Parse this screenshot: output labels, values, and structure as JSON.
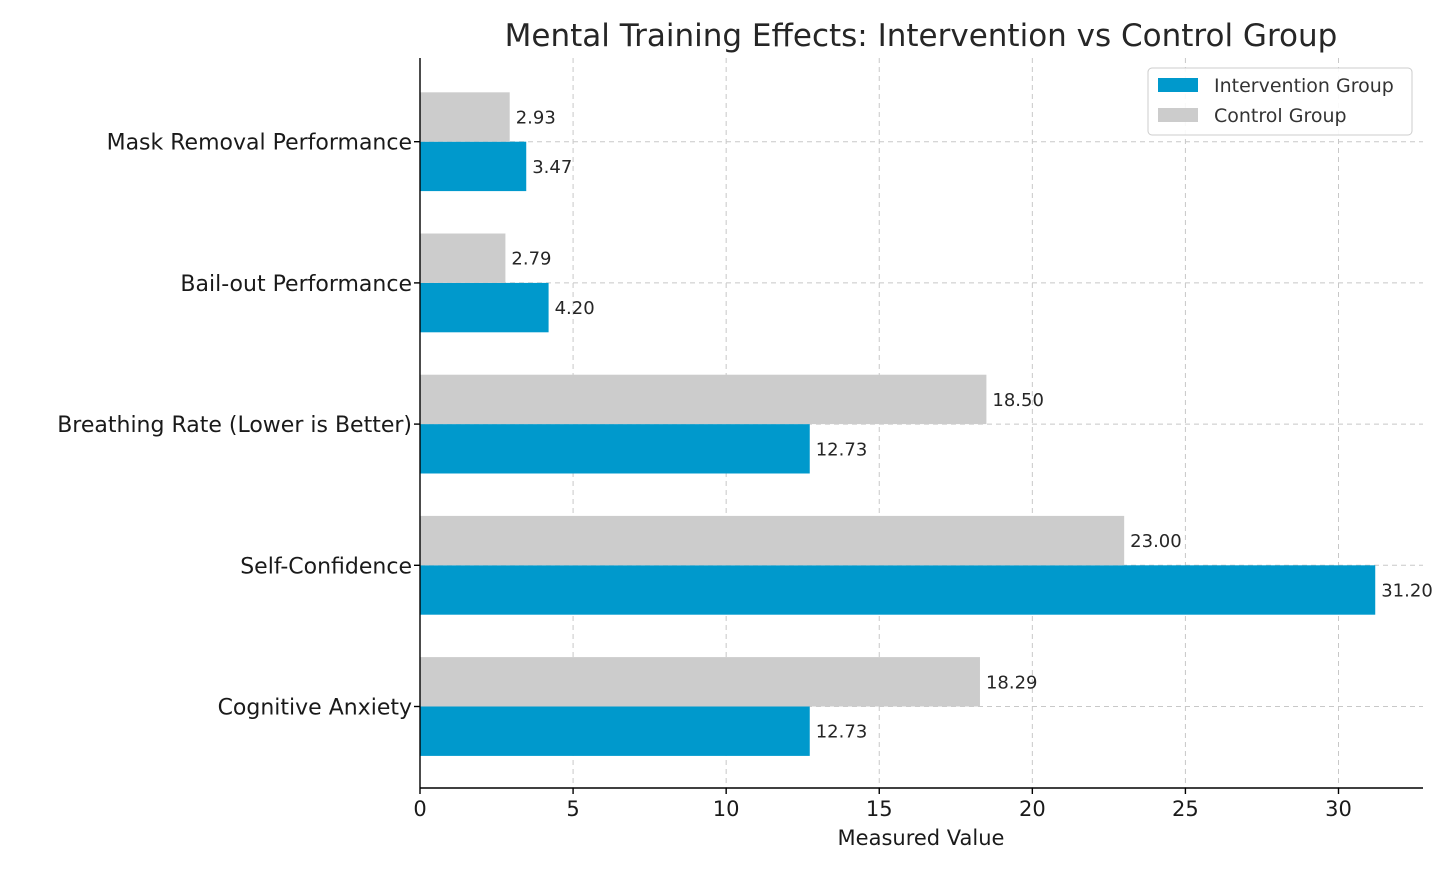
{
  "chart_data": {
    "type": "bar",
    "orientation": "horizontal",
    "title": "Mental Training Effects: Intervention vs Control Group",
    "xlabel": "Measured Value",
    "ylabel": "",
    "xlim": [
      0,
      32.76
    ],
    "xticks": [
      0,
      5,
      10,
      15,
      20,
      25,
      30
    ],
    "grid": true,
    "legend_position": "top-right",
    "categories": [
      "Cognitive Anxiety",
      "Self-Confidence",
      "Breathing Rate (Lower is Better)",
      "Bail-out Performance",
      "Mask Removal Performance"
    ],
    "series": [
      {
        "name": "Intervention Group",
        "color": "#0099cc",
        "values": [
          12.73,
          31.2,
          12.73,
          4.2,
          3.47
        ],
        "labels": [
          "12.73",
          "31.20",
          "12.73",
          "4.20",
          "3.47"
        ]
      },
      {
        "name": "Control Group",
        "color": "#cccccc",
        "values": [
          18.29,
          23.0,
          18.5,
          2.79,
          2.93
        ],
        "labels": [
          "18.29",
          "23.00",
          "18.50",
          "2.79",
          "2.93"
        ]
      }
    ]
  }
}
